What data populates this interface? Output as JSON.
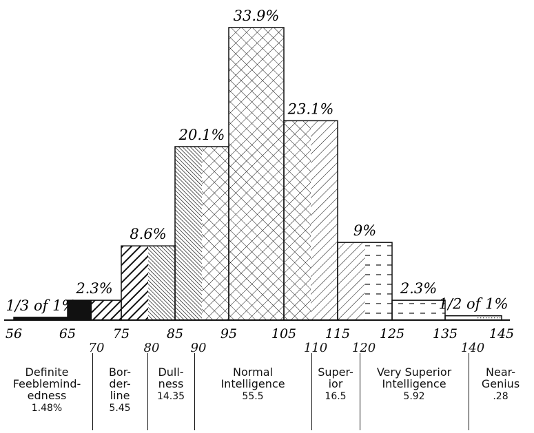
{
  "chart_data": {
    "type": "bar",
    "title": "",
    "xlabel": "",
    "ylabel": "",
    "x_ticks": [
      56,
      65,
      75,
      85,
      95,
      105,
      115,
      125,
      135,
      145
    ],
    "ylim": [
      0,
      36
    ],
    "bars": [
      {
        "from": 56,
        "to": 65,
        "value": 0.33,
        "label": "1/3 of 1%",
        "pattern": "solid"
      },
      {
        "from": 65,
        "to": 75,
        "value": 2.3,
        "label": "2.3%",
        "pattern": "border"
      },
      {
        "from": 75,
        "to": 85,
        "value": 8.6,
        "label": "8.6%",
        "pattern": "border-dull"
      },
      {
        "from": 85,
        "to": 95,
        "value": 20.1,
        "label": "20.1%",
        "pattern": "dull-normal"
      },
      {
        "from": 95,
        "to": 105,
        "value": 33.9,
        "label": "33.9%",
        "pattern": "normal"
      },
      {
        "from": 105,
        "to": 115,
        "value": 23.1,
        "label": "23.1%",
        "pattern": "normal-superior"
      },
      {
        "from": 115,
        "to": 125,
        "value": 9,
        "label": "9%",
        "pattern": "superior-very"
      },
      {
        "from": 125,
        "to": 135,
        "value": 2.3,
        "label": "2.3%",
        "pattern": "very"
      },
      {
        "from": 135,
        "to": 145,
        "value": 0.5,
        "label": "1/2 of 1%",
        "pattern": "very-genius"
      }
    ],
    "boundary_ticks": [
      "70",
      "80",
      "90",
      "110",
      "120",
      "140"
    ],
    "classes": [
      {
        "name": "Definite\nFeeblemind-\nedness",
        "value": "1.48%"
      },
      {
        "name": "Bor-\nder-\nline",
        "value": "5.45"
      },
      {
        "name": "Dull-\nness",
        "value": "14.35"
      },
      {
        "name": "Normal\nIntelligence",
        "value": "55.5"
      },
      {
        "name": "Super-\nior",
        "value": "16.5"
      },
      {
        "name": "Very Superior\nIntelligence",
        "value": "5.92"
      },
      {
        "name": "Near-\nGenius",
        "value": ".28"
      }
    ]
  }
}
